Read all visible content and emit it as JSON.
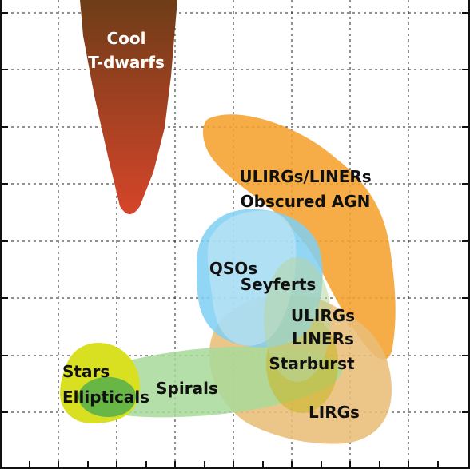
{
  "regions": [
    {
      "id": "cool-t-dwarfs",
      "lines": [
        "Cool",
        "T-dwarfs"
      ],
      "color_top": "#6e3d18",
      "color_bottom": "#d6452a"
    },
    {
      "id": "ulirgs-liners-obscured-agn",
      "lines": [
        "ULIRGs/LINERs",
        "Obscured AGN"
      ],
      "color": "#f5a22e"
    },
    {
      "id": "qsos",
      "lines": [
        "QSOs"
      ],
      "color": "#7fcff3"
    },
    {
      "id": "seyferts",
      "lines": [
        "Seyferts"
      ],
      "color": "#c5e6f4"
    },
    {
      "id": "ulirgs-liners",
      "lines": [
        "ULIRGs",
        "LINERs"
      ],
      "color": "#b7d6a0"
    },
    {
      "id": "starburst",
      "lines": [
        "Starburst"
      ],
      "color": "#c9b52a"
    },
    {
      "id": "lirgs",
      "lines": [
        "LIRGs"
      ],
      "color": "#e9bd78"
    },
    {
      "id": "spirals",
      "lines": [
        "Spirals"
      ],
      "color": "#a8d99a"
    },
    {
      "id": "stars",
      "lines": [
        "Stars"
      ],
      "color": "#d8e021"
    },
    {
      "id": "ellipticals",
      "lines": [
        "Ellipticals"
      ],
      "color": "#5cb24a"
    }
  ]
}
